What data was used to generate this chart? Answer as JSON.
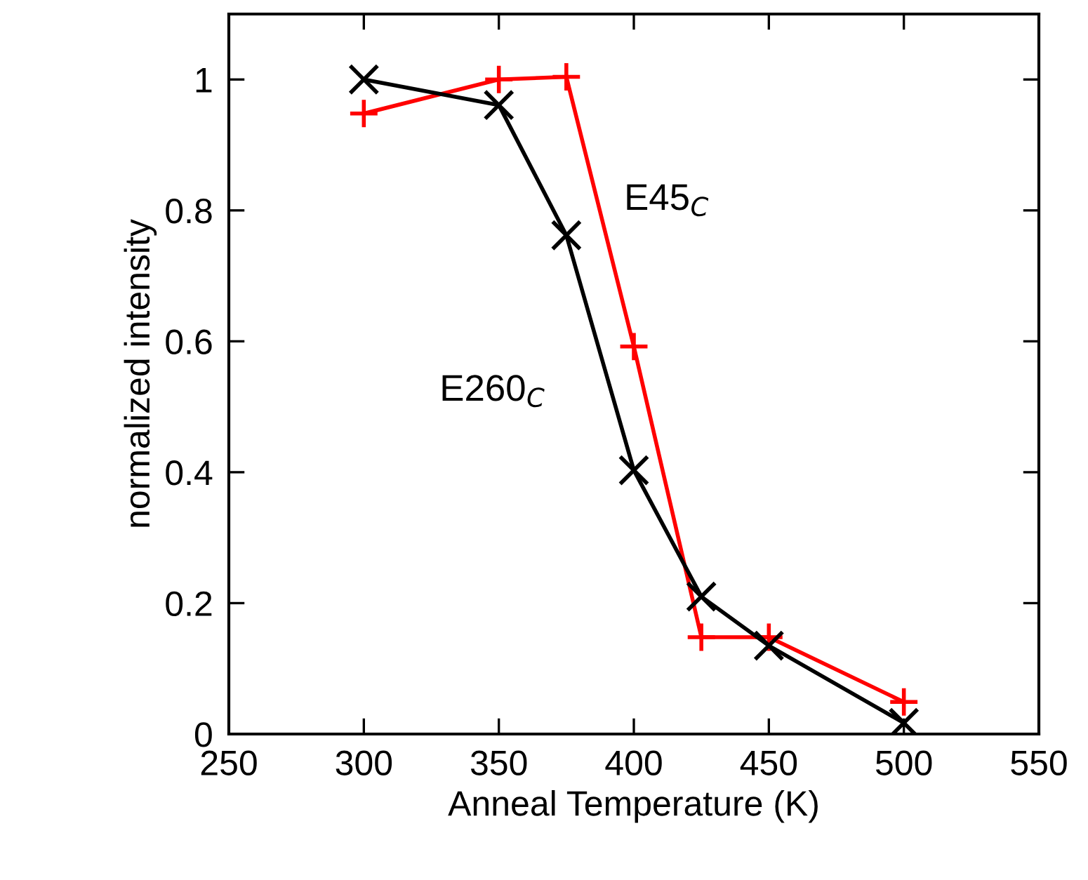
{
  "chart_data": {
    "type": "line",
    "xlabel": "Anneal Temperature (K)",
    "ylabel": "normalized intensity",
    "x": [
      300,
      350,
      375,
      400,
      425,
      450,
      500
    ],
    "series": [
      {
        "name": "E45$_{C}$",
        "color": "#ff0000",
        "marker": "plus",
        "values": [
          0.948,
          1.0,
          1.004,
          0.592,
          0.148,
          0.148,
          0.049
        ]
      },
      {
        "name": "E260$_{C}$",
        "color": "#000000",
        "marker": "cross",
        "values": [
          1.0,
          0.961,
          0.762,
          0.403,
          0.21,
          0.135,
          0.017
        ]
      }
    ],
    "xlim": [
      250,
      550
    ],
    "xticks": [
      250,
      300,
      350,
      400,
      450,
      500,
      550
    ],
    "ylim": [
      0,
      1.1
    ],
    "yticks": [
      0,
      0.2,
      0.4,
      0.6,
      0.8,
      1
    ],
    "grid": false,
    "legend": false,
    "line_style": "solid"
  }
}
